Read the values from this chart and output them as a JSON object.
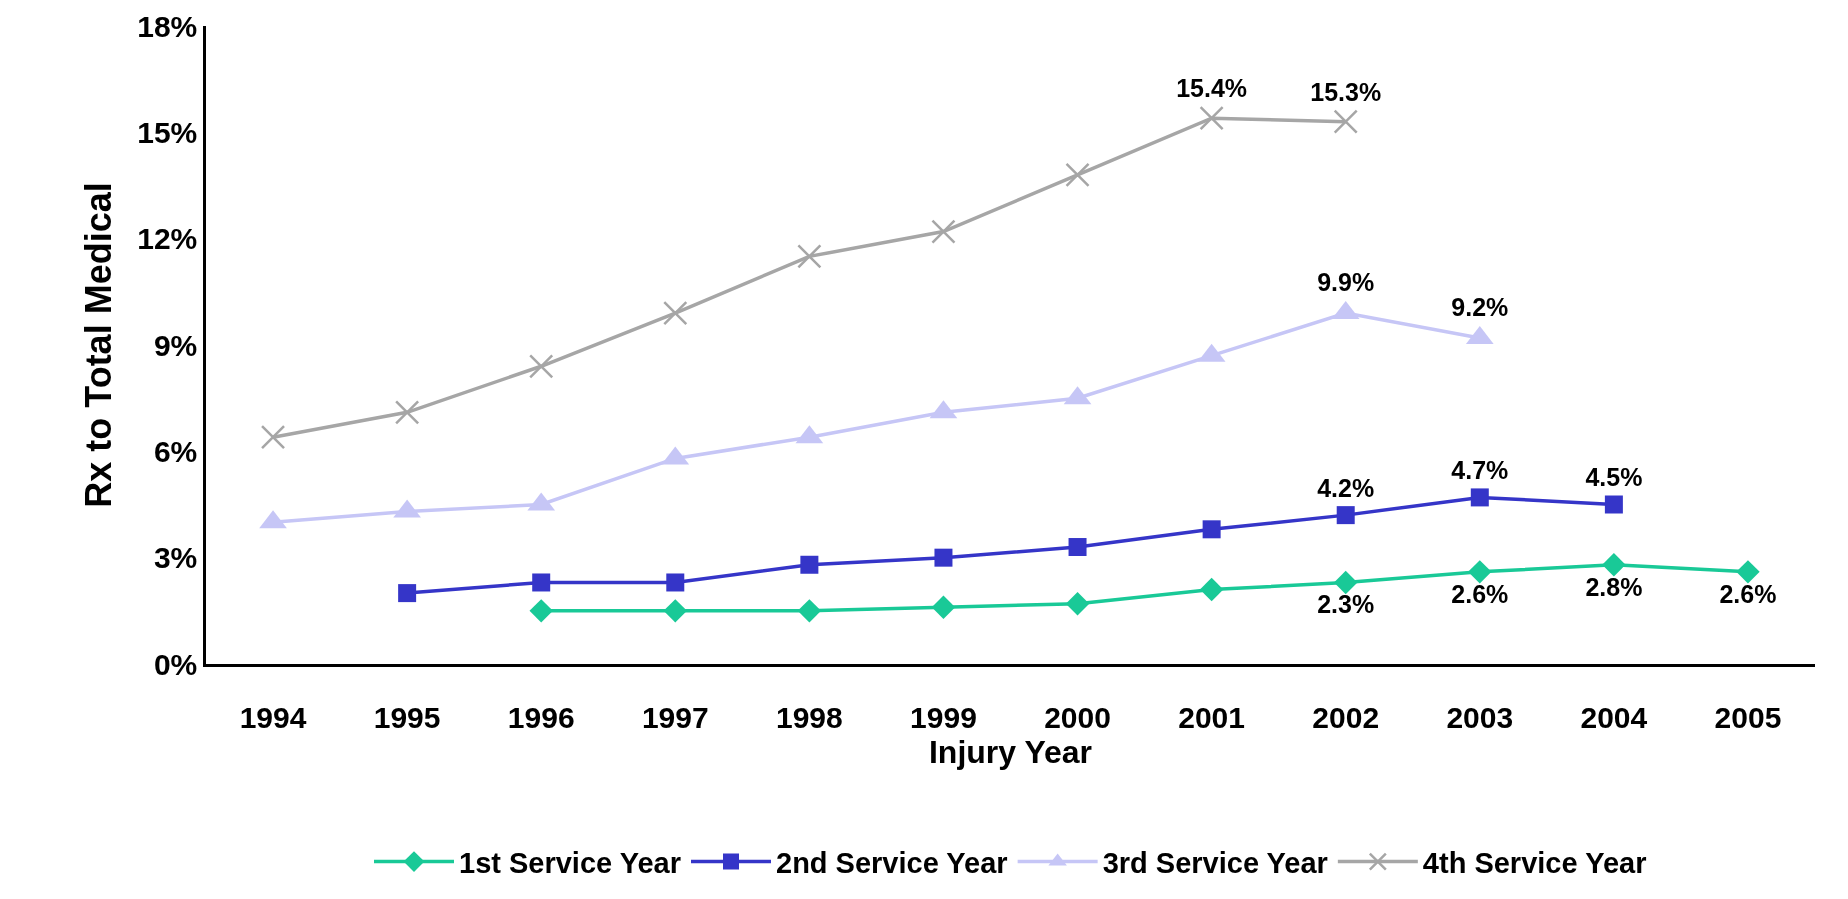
{
  "chart_data": {
    "type": "line",
    "xlabel": "Injury Year",
    "ylabel": "Rx to Total Medical",
    "categories": [
      "1994",
      "1995",
      "1996",
      "1997",
      "1998",
      "1999",
      "2000",
      "2001",
      "2002",
      "2003",
      "2004",
      "2005"
    ],
    "series": [
      {
        "name": "1st Service Year",
        "color": "#19c997",
        "marker": "diamond",
        "values": [
          null,
          null,
          1.5,
          1.5,
          1.5,
          1.6,
          1.7,
          2.1,
          2.3,
          2.6,
          2.8,
          2.6
        ],
        "value_labels": [
          null,
          null,
          null,
          null,
          null,
          null,
          null,
          null,
          "2.3%",
          "2.6%",
          "2.8%",
          "2.6%"
        ]
      },
      {
        "name": "2nd Service Year",
        "color": "#3535c8",
        "marker": "square",
        "values": [
          null,
          2.0,
          2.3,
          2.3,
          2.8,
          3.0,
          3.3,
          3.8,
          4.2,
          4.7,
          4.5,
          null
        ],
        "value_labels": [
          null,
          null,
          null,
          null,
          null,
          null,
          null,
          null,
          "4.2%",
          "4.7%",
          "4.5%",
          null
        ]
      },
      {
        "name": "3rd Service Year",
        "color": "#c6c6f6",
        "marker": "triangle",
        "values": [
          4.0,
          4.3,
          4.5,
          5.8,
          6.4,
          7.1,
          7.5,
          8.7,
          9.9,
          9.2,
          null,
          null
        ],
        "value_labels": [
          null,
          null,
          null,
          null,
          null,
          null,
          null,
          null,
          "9.9%",
          "9.2%",
          null,
          null
        ]
      },
      {
        "name": "4th Service Year",
        "color": "#a6a6a6",
        "marker": "cross",
        "values": [
          6.4,
          7.1,
          8.4,
          9.9,
          11.5,
          12.2,
          13.8,
          15.4,
          15.3,
          null,
          null,
          null
        ],
        "value_labels": [
          null,
          null,
          null,
          null,
          null,
          null,
          null,
          "15.4%",
          "15.3%",
          null,
          null,
          null
        ]
      }
    ],
    "ylim": [
      0,
      18
    ],
    "yticks": [
      {
        "value": 0,
        "label": "0%"
      },
      {
        "value": 3,
        "label": "3%"
      },
      {
        "value": 6,
        "label": "6%"
      },
      {
        "value": 9,
        "label": "9%"
      },
      {
        "value": 12,
        "label": "12%"
      },
      {
        "value": 15,
        "label": "15%"
      },
      {
        "value": 18,
        "label": "18%"
      }
    ],
    "grid": false,
    "legend": "bottom",
    "line_style": "solid"
  }
}
